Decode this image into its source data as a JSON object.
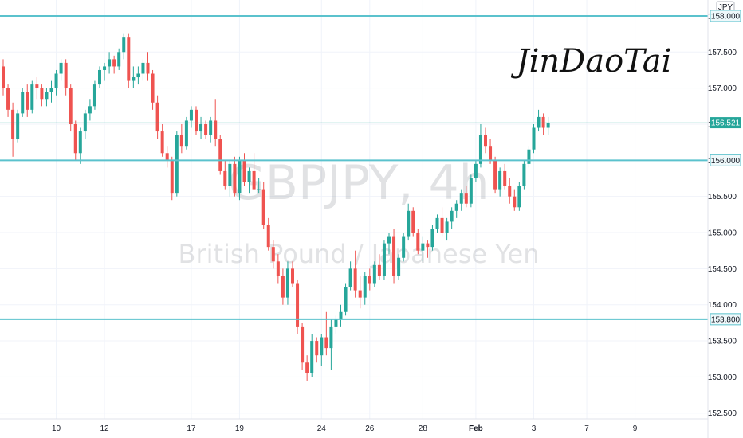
{
  "chart_data": {
    "type": "candlestick",
    "symbol_watermark": "GBPJPY, 4h",
    "description_watermark": "British Pound / Japanese Yen",
    "signature": "JinDaoTai",
    "currency": "JPY",
    "ylim": [
      152.42,
      158.22
    ],
    "y_ticks": [
      "152.500",
      "153.000",
      "153.500",
      "154.000",
      "154.500",
      "155.000",
      "155.500",
      "156.000",
      "156.500",
      "157.000",
      "157.500",
      "158.000"
    ],
    "x_ticks": [
      {
        "label": "10",
        "index": 11
      },
      {
        "label": "12",
        "index": 21
      },
      {
        "label": "17",
        "index": 39
      },
      {
        "label": "19",
        "index": 49
      },
      {
        "label": "24",
        "index": 66
      },
      {
        "label": "26",
        "index": 76
      },
      {
        "label": "28",
        "index": 87
      },
      {
        "label": "Feb",
        "index": 98
      },
      {
        "label": "3",
        "index": 110
      },
      {
        "label": "7",
        "index": 121
      },
      {
        "label": "9",
        "index": 131
      }
    ],
    "horizontal_levels": [
      {
        "value": 158.0,
        "label": "158.000",
        "color": "#5bc2cd"
      },
      {
        "value": 156.0,
        "label": "156.000",
        "color": "#5bc2cd"
      },
      {
        "value": 153.8,
        "label": "153.800",
        "color": "#5bc2cd"
      }
    ],
    "last_price": {
      "value": 156.521,
      "label": "156.521",
      "color": "#26a69a"
    },
    "colors": {
      "up": "#26a69a",
      "down": "#ef5350",
      "level": "#5bc2cd"
    },
    "candles": [
      [
        157.3,
        157.4,
        156.9,
        157.0
      ],
      [
        157.0,
        157.05,
        156.6,
        156.7
      ],
      [
        156.7,
        156.8,
        156.05,
        156.3
      ],
      [
        156.3,
        156.7,
        156.25,
        156.65
      ],
      [
        156.65,
        157.0,
        156.6,
        156.95
      ],
      [
        156.95,
        157.05,
        156.6,
        156.7
      ],
      [
        156.7,
        157.1,
        156.65,
        157.05
      ],
      [
        157.05,
        157.15,
        156.85,
        157.0
      ],
      [
        157.0,
        157.05,
        156.75,
        156.85
      ],
      [
        156.85,
        157.0,
        156.75,
        156.95
      ],
      [
        156.95,
        157.1,
        156.8,
        157.0
      ],
      [
        157.0,
        157.25,
        156.9,
        157.2
      ],
      [
        157.2,
        157.4,
        157.1,
        157.35
      ],
      [
        157.35,
        157.4,
        156.9,
        157.0
      ],
      [
        157.0,
        157.05,
        156.4,
        156.5
      ],
      [
        156.5,
        156.55,
        156.0,
        156.1
      ],
      [
        156.1,
        156.45,
        155.95,
        156.4
      ],
      [
        156.4,
        156.7,
        156.3,
        156.65
      ],
      [
        156.65,
        156.85,
        156.55,
        156.75
      ],
      [
        156.75,
        157.1,
        156.7,
        157.05
      ],
      [
        157.05,
        157.3,
        157.0,
        157.25
      ],
      [
        157.25,
        157.35,
        157.1,
        157.3
      ],
      [
        157.3,
        157.5,
        157.2,
        157.4
      ],
      [
        157.4,
        157.45,
        157.2,
        157.3
      ],
      [
        157.3,
        157.55,
        157.25,
        157.5
      ],
      [
        157.5,
        157.75,
        157.4,
        157.7
      ],
      [
        157.7,
        157.75,
        157.0,
        157.1
      ],
      [
        157.1,
        157.3,
        157.0,
        157.15
      ],
      [
        157.15,
        157.3,
        157.05,
        157.2
      ],
      [
        157.2,
        157.4,
        157.1,
        157.35
      ],
      [
        157.35,
        157.5,
        157.1,
        157.2
      ],
      [
        157.2,
        157.25,
        156.7,
        156.8
      ],
      [
        156.8,
        156.9,
        156.3,
        156.4
      ],
      [
        156.4,
        156.5,
        156.05,
        156.1
      ],
      [
        156.1,
        156.2,
        155.9,
        156.0
      ],
      [
        156.0,
        156.05,
        155.45,
        155.55
      ],
      [
        155.55,
        156.4,
        155.5,
        156.35
      ],
      [
        156.35,
        156.5,
        156.1,
        156.2
      ],
      [
        156.2,
        156.6,
        156.15,
        156.55
      ],
      [
        156.55,
        156.75,
        156.45,
        156.7
      ],
      [
        156.7,
        156.75,
        156.35,
        156.4
      ],
      [
        156.4,
        156.6,
        156.3,
        156.5
      ],
      [
        156.5,
        156.55,
        156.3,
        156.35
      ],
      [
        156.35,
        156.6,
        156.25,
        156.55
      ],
      [
        156.55,
        156.85,
        156.2,
        156.3
      ],
      [
        156.3,
        156.35,
        155.8,
        155.85
      ],
      [
        155.85,
        156.0,
        155.6,
        155.65
      ],
      [
        155.65,
        156.0,
        155.5,
        155.95
      ],
      [
        155.95,
        156.05,
        155.5,
        155.55
      ],
      [
        155.55,
        156.05,
        155.45,
        156.0
      ],
      [
        156.0,
        156.1,
        155.65,
        155.7
      ],
      [
        155.7,
        155.9,
        155.55,
        155.85
      ],
      [
        155.85,
        156.1,
        155.6,
        155.6
      ],
      [
        155.6,
        155.75,
        155.55,
        155.6
      ],
      [
        155.6,
        155.7,
        155.05,
        155.1
      ],
      [
        155.1,
        155.2,
        154.75,
        154.8
      ],
      [
        154.8,
        154.9,
        154.5,
        154.6
      ],
      [
        154.6,
        154.7,
        154.3,
        154.4
      ],
      [
        154.4,
        154.5,
        154.0,
        154.1
      ],
      [
        154.1,
        154.6,
        154.0,
        154.5
      ],
      [
        154.5,
        154.6,
        154.25,
        154.3
      ],
      [
        154.3,
        154.35,
        153.6,
        153.7
      ],
      [
        153.7,
        153.75,
        153.1,
        153.2
      ],
      [
        153.2,
        153.3,
        152.95,
        153.05
      ],
      [
        153.05,
        153.6,
        153.0,
        153.5
      ],
      [
        153.5,
        153.55,
        153.2,
        153.3
      ],
      [
        153.3,
        153.6,
        153.15,
        153.55
      ],
      [
        153.55,
        153.9,
        153.3,
        153.4
      ],
      [
        153.4,
        153.8,
        153.1,
        153.7
      ],
      [
        153.7,
        153.85,
        153.6,
        153.8
      ],
      [
        153.8,
        154.0,
        153.7,
        153.9
      ],
      [
        153.9,
        154.3,
        153.85,
        154.25
      ],
      [
        154.25,
        154.6,
        154.2,
        154.5
      ],
      [
        154.5,
        154.75,
        154.1,
        154.2
      ],
      [
        154.2,
        154.4,
        153.95,
        154.1
      ],
      [
        154.1,
        154.45,
        154.0,
        154.4
      ],
      [
        154.4,
        154.5,
        154.2,
        154.3
      ],
      [
        154.3,
        154.6,
        154.25,
        154.55
      ],
      [
        154.55,
        154.7,
        154.35,
        154.4
      ],
      [
        154.4,
        154.9,
        154.35,
        154.85
      ],
      [
        154.85,
        155.0,
        154.7,
        154.95
      ],
      [
        154.95,
        155.05,
        154.3,
        154.4
      ],
      [
        154.4,
        154.7,
        154.35,
        154.65
      ],
      [
        154.65,
        155.0,
        154.6,
        154.95
      ],
      [
        154.95,
        155.4,
        154.9,
        155.3
      ],
      [
        155.3,
        155.35,
        154.95,
        155.0
      ],
      [
        155.0,
        155.05,
        154.7,
        154.75
      ],
      [
        154.75,
        154.95,
        154.6,
        154.85
      ],
      [
        154.85,
        154.9,
        154.65,
        154.8
      ],
      [
        154.8,
        155.1,
        154.75,
        155.05
      ],
      [
        155.05,
        155.25,
        155.0,
        155.2
      ],
      [
        155.2,
        155.35,
        154.95,
        155.0
      ],
      [
        155.0,
        155.2,
        154.9,
        155.15
      ],
      [
        155.15,
        155.35,
        155.05,
        155.3
      ],
      [
        155.3,
        155.45,
        155.2,
        155.4
      ],
      [
        155.4,
        155.6,
        155.3,
        155.55
      ],
      [
        155.55,
        155.65,
        155.35,
        155.4
      ],
      [
        155.4,
        155.8,
        155.35,
        155.75
      ],
      [
        155.75,
        156.0,
        155.7,
        155.95
      ],
      [
        155.95,
        156.5,
        155.9,
        156.35
      ],
      [
        156.35,
        156.45,
        156.1,
        156.2
      ],
      [
        156.2,
        156.3,
        155.95,
        156.0
      ],
      [
        156.0,
        156.05,
        155.55,
        155.6
      ],
      [
        155.6,
        155.9,
        155.5,
        155.85
      ],
      [
        155.85,
        155.95,
        155.6,
        155.65
      ],
      [
        155.65,
        155.75,
        155.4,
        155.5
      ],
      [
        155.5,
        155.6,
        155.3,
        155.35
      ],
      [
        155.35,
        155.7,
        155.3,
        155.65
      ],
      [
        155.65,
        156.0,
        155.6,
        155.95
      ],
      [
        155.95,
        156.2,
        155.9,
        156.15
      ],
      [
        156.15,
        156.5,
        156.1,
        156.45
      ],
      [
        156.45,
        156.7,
        156.4,
        156.6
      ],
      [
        156.6,
        156.65,
        156.35,
        156.45
      ],
      [
        156.45,
        156.6,
        156.35,
        156.52
      ]
    ]
  }
}
